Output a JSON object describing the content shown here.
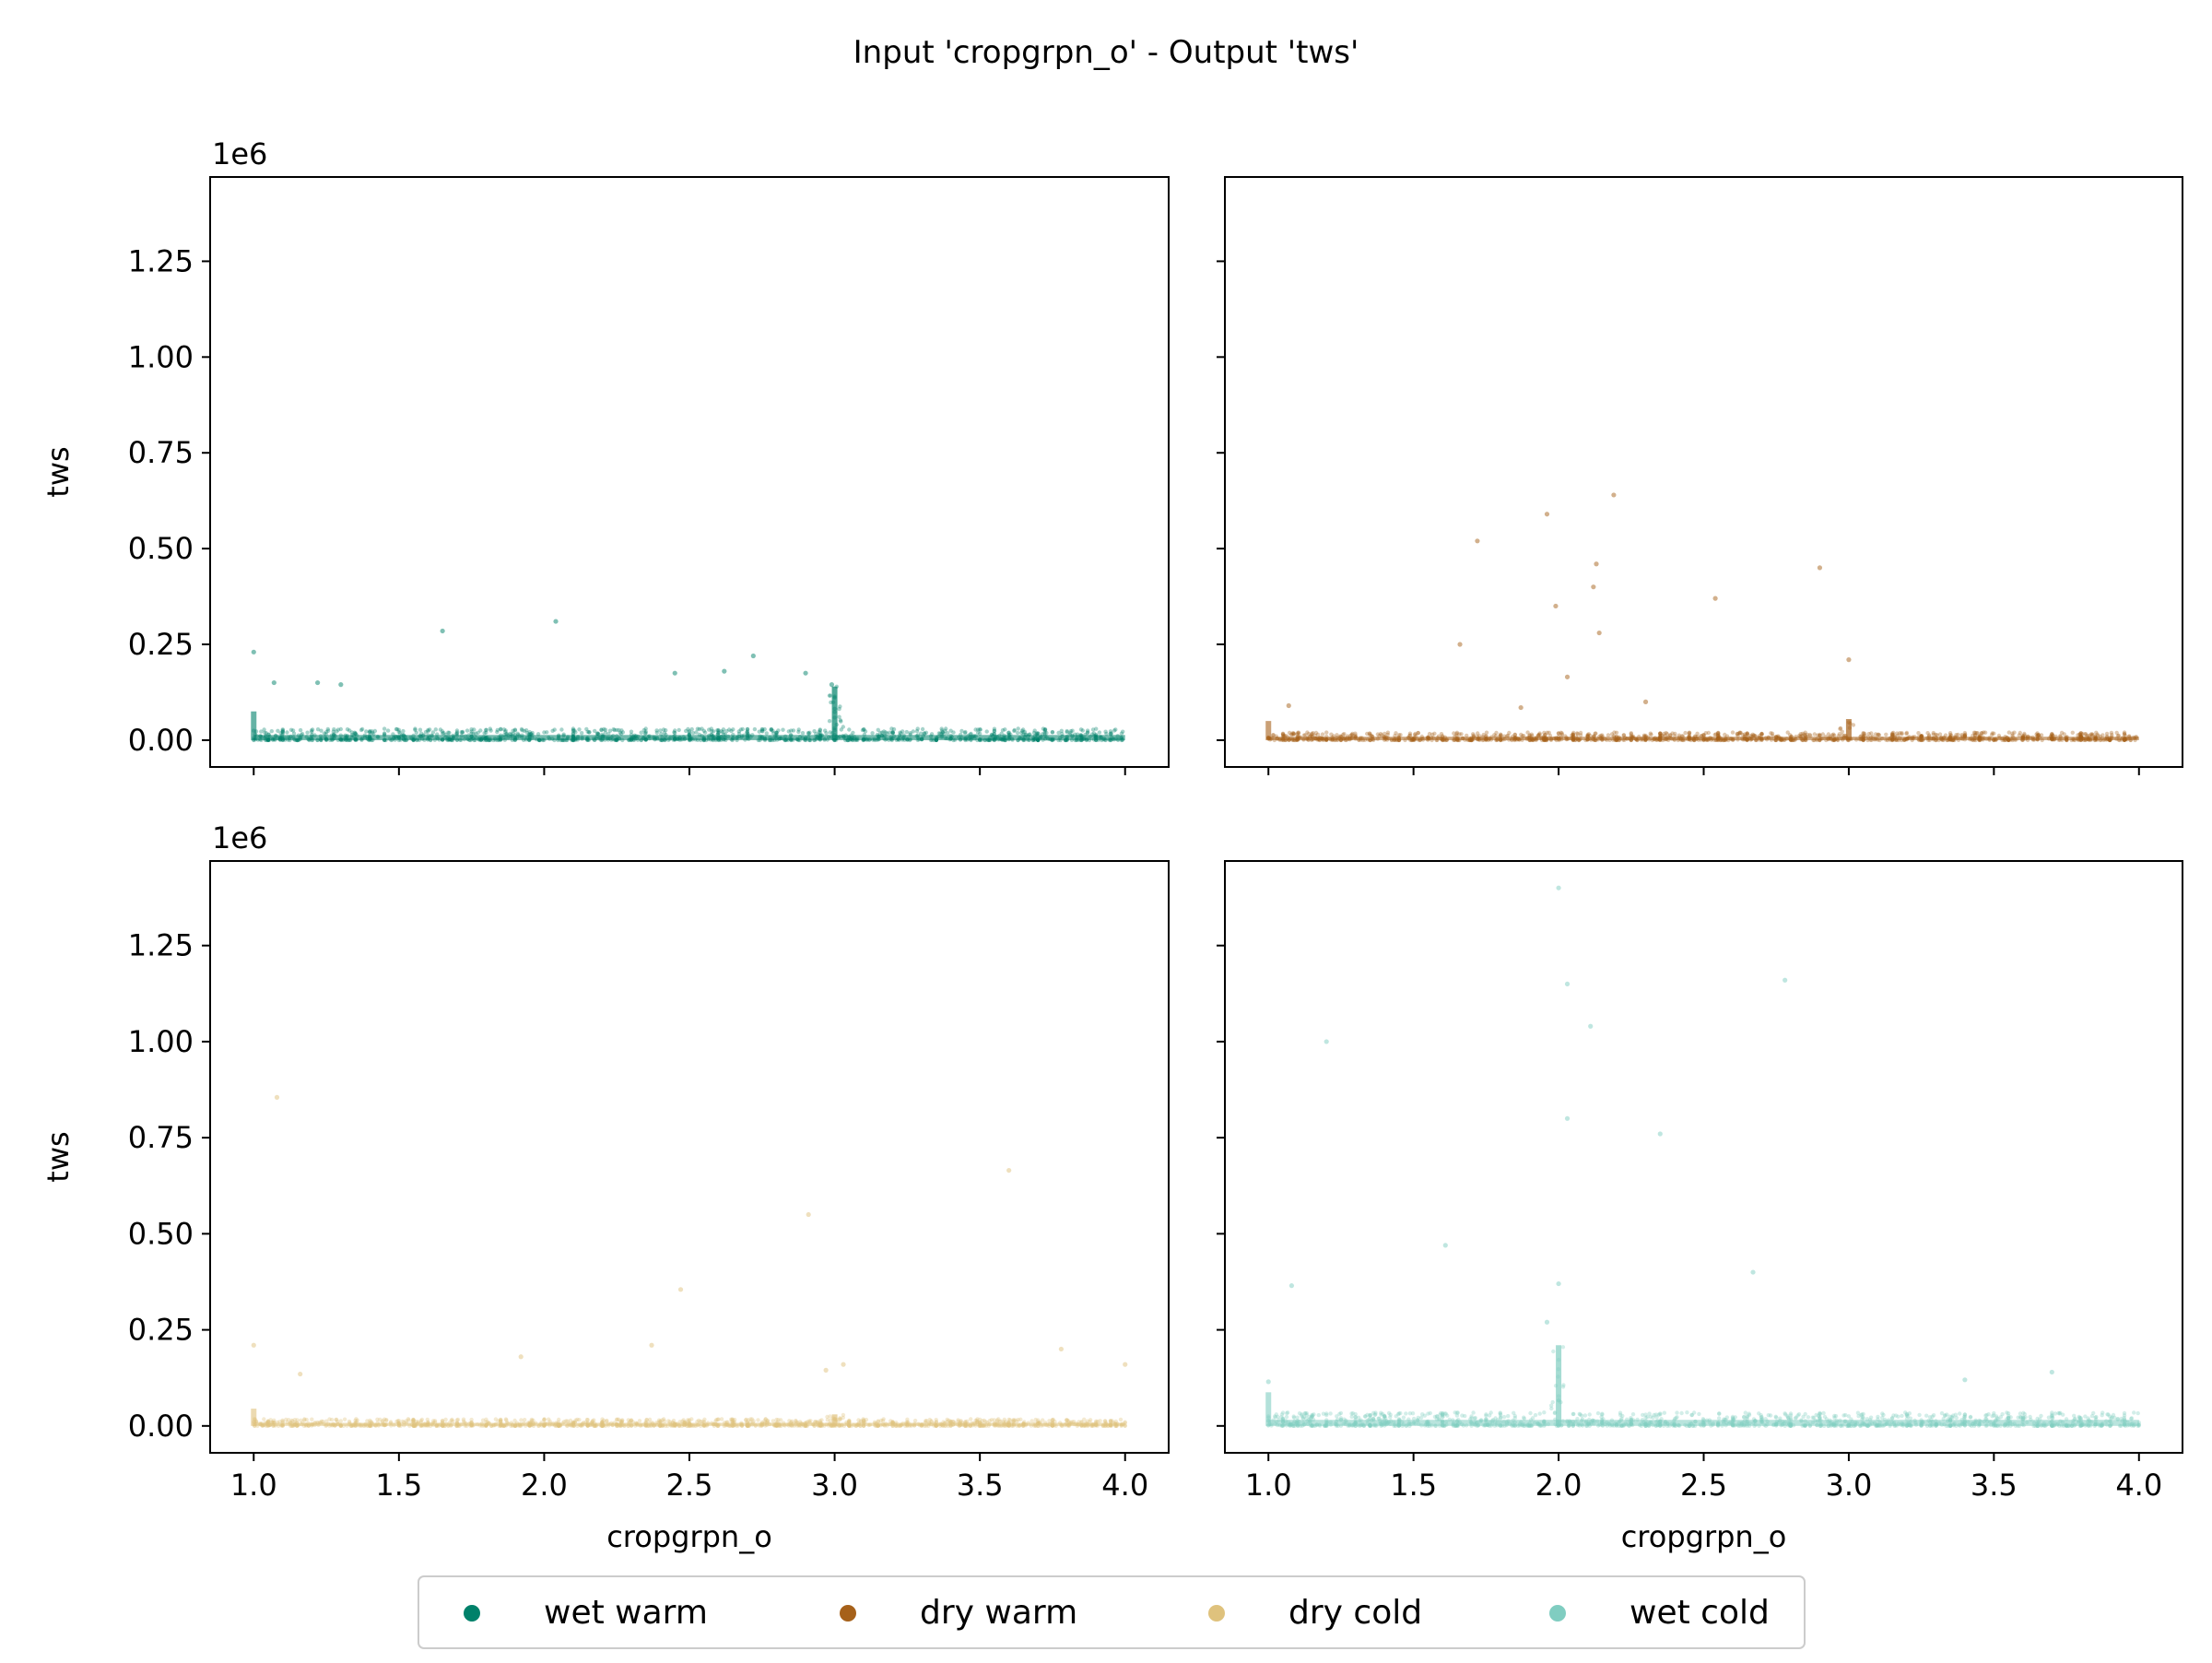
{
  "chart_data": {
    "type": "scatter",
    "title": "Input 'cropgrpn_o' - Output 'tws'",
    "xlabel": "cropgrpn_o",
    "ylabel": "tws",
    "y_offset_label": "1e6",
    "xlim": [
      0.85,
      4.15
    ],
    "ylim": [
      -70000,
      1470000
    ],
    "xticks": [
      1.0,
      1.5,
      2.0,
      2.5,
      3.0,
      3.5,
      4.0
    ],
    "xtick_labels": [
      "1.0",
      "1.5",
      "2.0",
      "2.5",
      "3.0",
      "3.5",
      "4.0"
    ],
    "yticks": [
      0,
      250000,
      500000,
      750000,
      1000000,
      1250000
    ],
    "ytick_labels": [
      "0.00",
      "0.25",
      "0.50",
      "0.75",
      "1.00",
      "1.25"
    ],
    "grid": false,
    "legend_placement": "bottom-center",
    "legend": [
      "wet warm",
      "dry warm",
      "dry cold",
      "wet cold"
    ],
    "panels": [
      {
        "series": "wet warm",
        "color": "#00816a",
        "base_max": 30000,
        "spike_x": 3.0,
        "spike_max": 140000,
        "outliers": [
          [
            1.0,
            230000
          ],
          [
            1.65,
            285000
          ],
          [
            2.04,
            310000
          ],
          [
            2.72,
            220000
          ],
          [
            2.9,
            175000
          ],
          [
            2.45,
            175000
          ],
          [
            2.62,
            180000
          ],
          [
            1.22,
            150000
          ],
          [
            1.07,
            150000
          ],
          [
            1.3,
            145000
          ],
          [
            2.99,
            145000
          ]
        ]
      },
      {
        "series": "dry warm",
        "color": "#a6611a",
        "base_max": 20000,
        "spike_x": 3.0,
        "spike_max": 55000,
        "outliers": [
          [
            2.19,
            640000
          ],
          [
            1.96,
            590000
          ],
          [
            1.72,
            520000
          ],
          [
            2.13,
            460000
          ],
          [
            2.9,
            450000
          ],
          [
            2.12,
            400000
          ],
          [
            2.54,
            370000
          ],
          [
            1.99,
            350000
          ],
          [
            2.14,
            280000
          ],
          [
            1.66,
            250000
          ],
          [
            3.0,
            210000
          ],
          [
            2.03,
            165000
          ],
          [
            2.3,
            100000
          ],
          [
            1.07,
            90000
          ],
          [
            1.87,
            85000
          ]
        ]
      },
      {
        "series": "dry cold",
        "color": "#dfc27d",
        "base_max": 18000,
        "spike_x": 3.0,
        "spike_max": 30000,
        "outliers": [
          [
            1.08,
            855000
          ],
          [
            3.6,
            665000
          ],
          [
            2.91,
            550000
          ],
          [
            2.47,
            355000
          ],
          [
            1.0,
            210000
          ],
          [
            2.37,
            210000
          ],
          [
            3.78,
            200000
          ],
          [
            1.92,
            180000
          ],
          [
            4.0,
            160000
          ],
          [
            3.03,
            160000
          ],
          [
            2.97,
            145000
          ],
          [
            1.16,
            135000
          ]
        ]
      },
      {
        "series": "wet cold",
        "color": "#80cdc1",
        "base_max": 35000,
        "spike_x": 2.0,
        "spike_max": 210000,
        "outliers": [
          [
            2.0,
            1400000
          ],
          [
            2.78,
            1160000
          ],
          [
            2.03,
            1150000
          ],
          [
            2.11,
            1040000
          ],
          [
            1.2,
            1000000
          ],
          [
            2.03,
            800000
          ],
          [
            2.35,
            760000
          ],
          [
            1.61,
            470000
          ],
          [
            2.67,
            400000
          ],
          [
            2.0,
            370000
          ],
          [
            1.08,
            365000
          ],
          [
            1.96,
            270000
          ],
          [
            3.4,
            120000
          ],
          [
            3.7,
            140000
          ],
          [
            1.0,
            115000
          ]
        ]
      }
    ]
  }
}
